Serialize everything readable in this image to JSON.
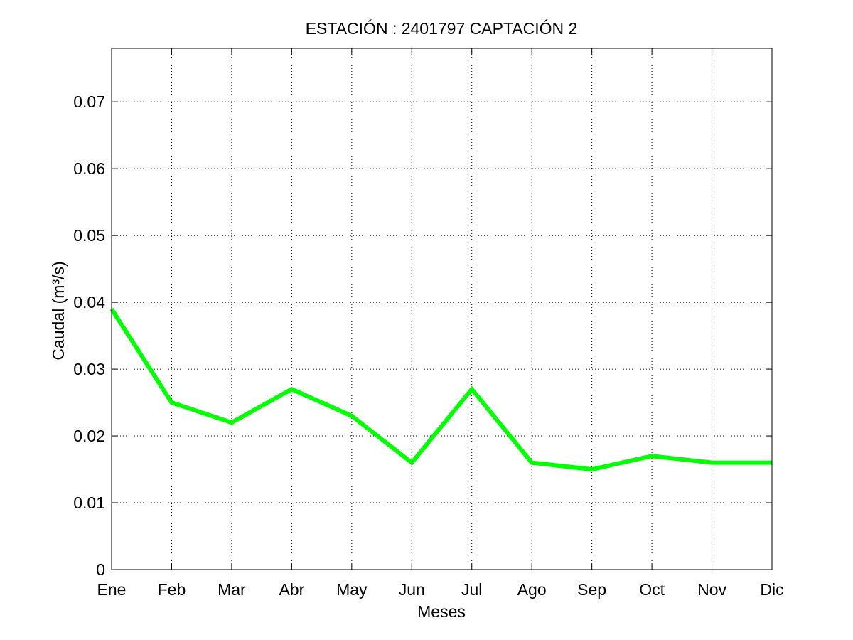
{
  "chart_data": {
    "type": "line",
    "title": "ESTACIÓN :  2401797  CAPTACIÓN 2",
    "xlabel": "Meses",
    "ylabel": "Caudal (m³/s)",
    "categories": [
      "Ene",
      "Feb",
      "Mar",
      "Abr",
      "May",
      "Jun",
      "Jul",
      "Ago",
      "Sep",
      "Oct",
      "Nov",
      "Dic"
    ],
    "ylim": [
      0,
      0.078
    ],
    "yticks": [
      0,
      0.01,
      0.02,
      0.03,
      0.04,
      0.05,
      0.06,
      0.07
    ],
    "ytick_labels": [
      "0",
      "0.01",
      "0.02",
      "0.03",
      "0.04",
      "0.05",
      "0.06",
      "0.07"
    ],
    "grid": true,
    "series": [
      {
        "values": [
          0.039,
          0.025,
          0.022,
          0.027,
          0.023,
          0.016,
          0.027,
          0.016,
          0.015,
          0.017,
          0.016,
          0.016
        ],
        "color": "#00ff00"
      }
    ]
  }
}
